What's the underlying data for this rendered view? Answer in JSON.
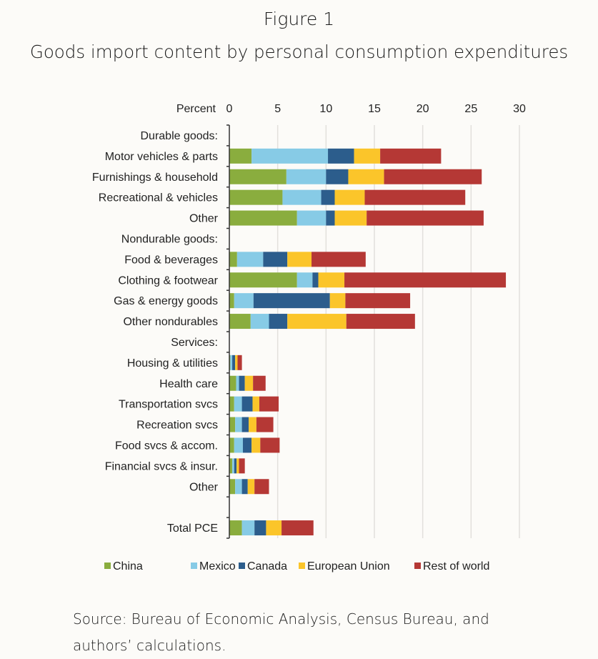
{
  "header": {
    "figure_label": "Figure 1",
    "title": "Goods import content by personal consumption expenditures"
  },
  "source_note": "Source: Bureau of Economic Analysis, Census Bureau, and authors’ calculations.",
  "colors": {
    "China": "#8aad3e",
    "Mexico": "#87cbe6",
    "Canada": "#2c5d8c",
    "European Union": "#fbc52a",
    "Rest of world": "#b53835",
    "gridline": "#e2e0dc",
    "axis": "#333333"
  },
  "chart_data": {
    "type": "bar",
    "orientation": "horizontal",
    "stacked": true,
    "title": "Goods import content by personal consumption expenditures",
    "xlabel": "Percent",
    "ylabel": "",
    "xlim": [
      0,
      30
    ],
    "xticks": [
      0,
      5,
      10,
      15,
      20,
      25,
      30
    ],
    "x_axis_position": "top",
    "grid": true,
    "legend_position": "bottom",
    "categories": [
      "Durable goods:",
      "Motor vehicles & parts",
      "Furnishings & household",
      "Recreational & vehicles",
      "Other",
      "Nondurable goods:",
      "Food & beverages",
      "Clothing & footwear",
      "Gas & energy goods",
      "Other nondurables",
      "Services:",
      "Housing & utilities",
      "Health care",
      "Transportation svcs",
      "Recreation svcs",
      "Food svcs & accom.",
      "Financial svcs & insur.",
      "Other",
      "",
      "Total PCE"
    ],
    "series": [
      {
        "name": "China",
        "values": [
          null,
          2.3,
          5.9,
          5.5,
          7.0,
          null,
          0.8,
          7.0,
          0.5,
          2.2,
          null,
          0.1,
          0.7,
          0.5,
          0.6,
          0.5,
          0.3,
          0.6,
          null,
          1.3
        ]
      },
      {
        "name": "Mexico",
        "values": [
          null,
          7.9,
          4.1,
          4.0,
          3.0,
          null,
          2.7,
          1.6,
          2.0,
          1.9,
          null,
          0.2,
          0.3,
          0.8,
          0.7,
          0.9,
          0.2,
          0.7,
          null,
          1.3
        ]
      },
      {
        "name": "Canada",
        "values": [
          null,
          2.7,
          2.3,
          1.4,
          0.9,
          null,
          2.5,
          0.6,
          7.9,
          1.9,
          null,
          0.3,
          0.6,
          1.1,
          0.7,
          0.9,
          0.25,
          0.6,
          null,
          1.2
        ]
      },
      {
        "name": "European Union",
        "values": [
          null,
          2.7,
          3.7,
          3.1,
          3.3,
          null,
          2.5,
          2.7,
          1.6,
          6.1,
          null,
          0.25,
          0.85,
          0.7,
          0.8,
          0.9,
          0.25,
          0.7,
          null,
          1.6
        ]
      },
      {
        "name": "Rest of world",
        "values": [
          null,
          6.3,
          10.1,
          10.4,
          12.1,
          null,
          5.6,
          16.7,
          6.7,
          7.1,
          null,
          0.45,
          1.3,
          2.0,
          1.75,
          2.0,
          0.6,
          1.5,
          null,
          3.3
        ]
      }
    ],
    "legend": [
      "China",
      "Mexico",
      "Canada",
      "European Union",
      "Rest of world"
    ]
  }
}
